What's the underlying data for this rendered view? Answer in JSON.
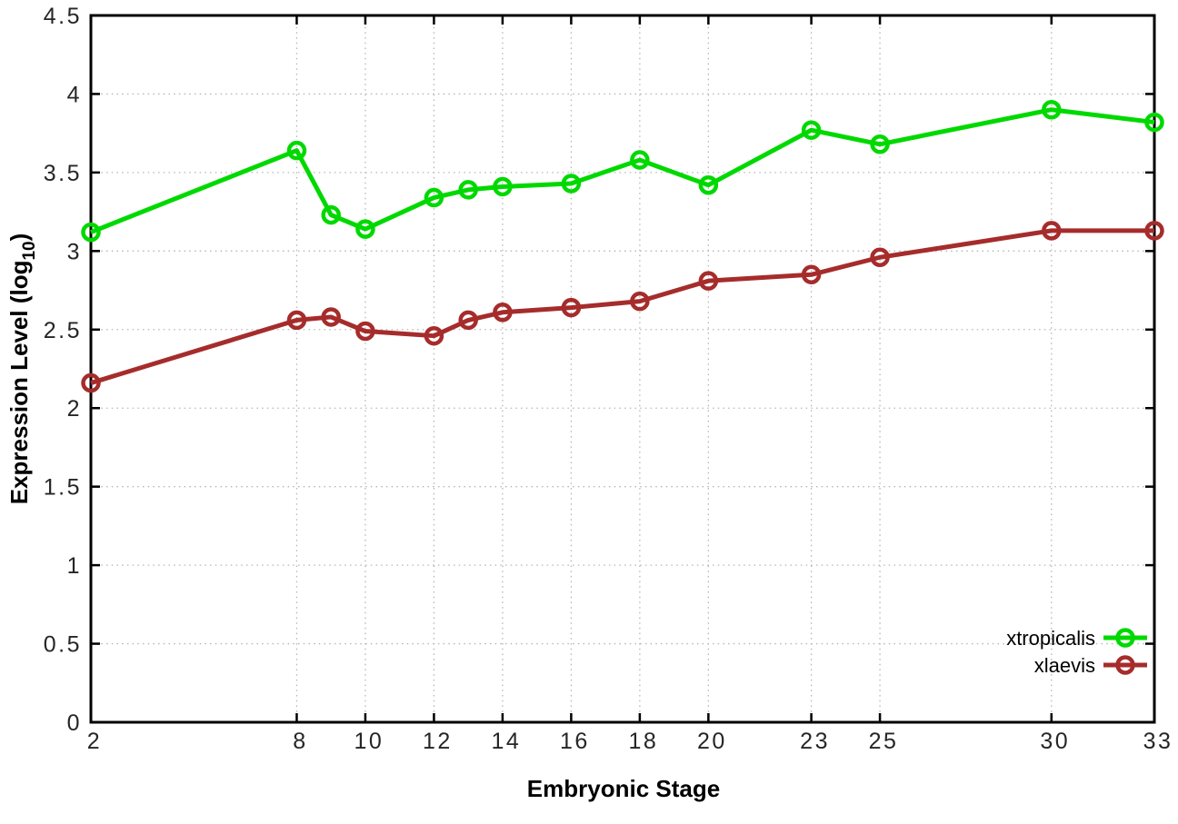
{
  "figure": {
    "background": "#ffffff"
  },
  "chart_data": {
    "type": "line",
    "title": "",
    "xlabel": "Embryonic Stage",
    "ylabel": {
      "prefix": "Expression Level (log",
      "sub": "10",
      "suffix": ")"
    },
    "xlim": [
      2,
      33
    ],
    "ylim": [
      0,
      4.5
    ],
    "x_ticks": [
      2,
      8,
      10,
      12,
      14,
      16,
      18,
      20,
      23,
      25,
      30,
      33
    ],
    "y_ticks": [
      0,
      0.5,
      1,
      1.5,
      2,
      2.5,
      3,
      3.5,
      4,
      4.5
    ],
    "grid": true,
    "legend_position": "bottom-right",
    "x": [
      2,
      8,
      9,
      10,
      12,
      13,
      14,
      16,
      18,
      20,
      23,
      25,
      30,
      33
    ],
    "series": [
      {
        "name": "xtropicalis",
        "color": "#00d900",
        "values": [
          3.12,
          3.64,
          3.23,
          3.14,
          3.34,
          3.39,
          3.41,
          3.43,
          3.58,
          3.42,
          3.77,
          3.68,
          3.9,
          3.82
        ]
      },
      {
        "name": "xlaevis",
        "color": "#a62c2c",
        "values": [
          2.16,
          2.56,
          2.58,
          2.49,
          2.46,
          2.56,
          2.61,
          2.64,
          2.68,
          2.81,
          2.85,
          2.96,
          3.13,
          3.13
        ]
      }
    ],
    "axis_color": "#000000",
    "grid_color": "#b5b5b5",
    "tick_label_color": "#262626"
  }
}
